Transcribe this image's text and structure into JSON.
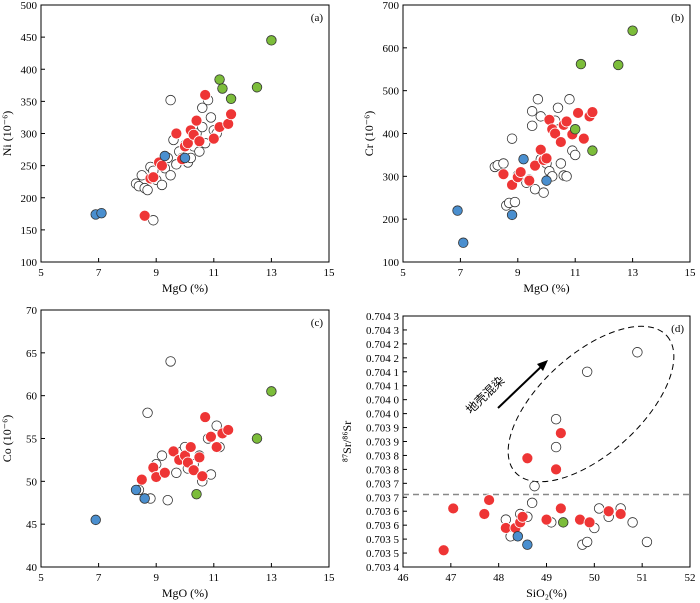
{
  "figure": {
    "description_colors": {
      "red": "#ee3535",
      "green": "#7cbd3a",
      "blue": "#4a8fcf",
      "open": "#ffffff",
      "outline": "#333333"
    }
  },
  "chart_data": [
    {
      "type": "scatter",
      "panel_label": "(a)",
      "xlabel": "MgO (%)",
      "ylabel": "Ni (10⁻⁶)",
      "xlim": [
        5,
        15
      ],
      "ylim": [
        100,
        500
      ],
      "xticks": [
        5,
        7,
        9,
        11,
        13,
        15
      ],
      "yticks": [
        100,
        150,
        200,
        250,
        300,
        350,
        400,
        450,
        500
      ],
      "grid": false,
      "series": [
        {
          "marker": "open",
          "points": [
            [
              8.3,
              222
            ],
            [
              8.4,
              218
            ],
            [
              8.5,
              235
            ],
            [
              8.6,
              215
            ],
            [
              8.7,
              212
            ],
            [
              8.8,
              248
            ],
            [
              8.9,
              242
            ],
            [
              8.9,
              165
            ],
            [
              9.0,
              228
            ],
            [
              9.2,
              220
            ],
            [
              9.3,
              246
            ],
            [
              9.4,
              262
            ],
            [
              9.5,
              235
            ],
            [
              9.5,
              352
            ],
            [
              9.6,
              290
            ],
            [
              9.7,
              252
            ],
            [
              9.8,
              272
            ],
            [
              9.9,
              262
            ],
            [
              10.0,
              282
            ],
            [
              10.1,
              255
            ],
            [
              10.2,
              262
            ],
            [
              10.3,
              280
            ],
            [
              10.4,
              300
            ],
            [
              10.5,
              272
            ],
            [
              10.6,
              310
            ],
            [
              10.6,
              340
            ],
            [
              10.7,
              285
            ],
            [
              10.8,
              352
            ],
            [
              10.9,
              325
            ],
            [
              11.0,
              305
            ],
            [
              11.1,
              300
            ]
          ]
        },
        {
          "marker": "red",
          "points": [
            [
              8.6,
              172
            ],
            [
              8.8,
              230
            ],
            [
              8.9,
              232
            ],
            [
              9.1,
              255
            ],
            [
              9.2,
              250
            ],
            [
              9.7,
              300
            ],
            [
              9.9,
              260
            ],
            [
              10.0,
              280
            ],
            [
              10.1,
              285
            ],
            [
              10.2,
              305
            ],
            [
              10.3,
              298
            ],
            [
              10.4,
              320
            ],
            [
              10.5,
              288
            ],
            [
              10.7,
              360
            ],
            [
              11.0,
              292
            ],
            [
              11.2,
              310
            ],
            [
              11.5,
              315
            ],
            [
              11.6,
              330
            ]
          ]
        },
        {
          "marker": "green",
          "points": [
            [
              11.2,
              384
            ],
            [
              11.3,
              370
            ],
            [
              11.6,
              354
            ],
            [
              12.5,
              372
            ],
            [
              13.0,
              445
            ]
          ]
        },
        {
          "marker": "blue",
          "points": [
            [
              6.9,
              174
            ],
            [
              7.1,
              176
            ],
            [
              9.3,
              265
            ],
            [
              10.0,
              262
            ]
          ]
        }
      ]
    },
    {
      "type": "scatter",
      "panel_label": "(b)",
      "xlabel": "MgO (%)",
      "ylabel": "Cr (10⁻⁶)",
      "xlim": [
        5,
        15
      ],
      "ylim": [
        100,
        700
      ],
      "xticks": [
        5,
        7,
        9,
        11,
        13,
        15
      ],
      "yticks": [
        100,
        200,
        300,
        400,
        500,
        600,
        700
      ],
      "grid": false,
      "series": [
        {
          "marker": "open",
          "points": [
            [
              8.2,
              322
            ],
            [
              8.3,
              326
            ],
            [
              8.5,
              330
            ],
            [
              8.6,
              232
            ],
            [
              8.7,
              238
            ],
            [
              8.8,
              388
            ],
            [
              8.9,
              240
            ],
            [
              9.0,
              302
            ],
            [
              9.1,
              310
            ],
            [
              9.3,
              285
            ],
            [
              9.4,
              292
            ],
            [
              9.5,
              418
            ],
            [
              9.5,
              452
            ],
            [
              9.6,
              270
            ],
            [
              9.7,
              480
            ],
            [
              9.8,
              440
            ],
            [
              9.8,
              340
            ],
            [
              9.9,
              262
            ],
            [
              10.0,
              330
            ],
            [
              10.1,
              312
            ],
            [
              10.2,
              300
            ],
            [
              10.3,
              430
            ],
            [
              10.4,
              460
            ],
            [
              10.5,
              330
            ],
            [
              10.6,
              302
            ],
            [
              10.7,
              300
            ],
            [
              10.8,
              480
            ],
            [
              10.9,
              360
            ],
            [
              11.0,
              350
            ]
          ]
        },
        {
          "marker": "red",
          "points": [
            [
              8.5,
              305
            ],
            [
              8.8,
              280
            ],
            [
              9.0,
              298
            ],
            [
              9.1,
              310
            ],
            [
              9.4,
              290
            ],
            [
              9.6,
              325
            ],
            [
              9.8,
              362
            ],
            [
              9.9,
              338
            ],
            [
              10.0,
              342
            ],
            [
              10.1,
              432
            ],
            [
              10.2,
              410
            ],
            [
              10.3,
              400
            ],
            [
              10.5,
              380
            ],
            [
              10.6,
              420
            ],
            [
              10.7,
              428
            ],
            [
              10.9,
              398
            ],
            [
              11.1,
              448
            ],
            [
              11.3,
              388
            ],
            [
              11.5,
              440
            ],
            [
              11.6,
              450
            ]
          ]
        },
        {
          "marker": "green",
          "points": [
            [
              11.0,
              410
            ],
            [
              11.2,
              562
            ],
            [
              11.6,
              360
            ],
            [
              12.5,
              560
            ],
            [
              13.0,
              640
            ]
          ]
        },
        {
          "marker": "blue",
          "points": [
            [
              6.9,
              220
            ],
            [
              7.1,
              145
            ],
            [
              8.8,
              210
            ],
            [
              9.2,
              340
            ],
            [
              10.0,
              290
            ]
          ]
        }
      ]
    },
    {
      "type": "scatter",
      "panel_label": "(c)",
      "xlabel": "MgO (%)",
      "ylabel": "Co (10⁻⁶)",
      "xlim": [
        5,
        15
      ],
      "ylim": [
        40,
        70
      ],
      "xticks": [
        5,
        7,
        9,
        11,
        13,
        15
      ],
      "yticks": [
        40,
        45,
        50,
        55,
        60,
        65,
        70
      ],
      "grid": false,
      "series": [
        {
          "marker": "open",
          "points": [
            [
              8.4,
              49
            ],
            [
              8.6,
              48
            ],
            [
              8.7,
              58
            ],
            [
              8.8,
              48
            ],
            [
              9.0,
              52
            ],
            [
              9.2,
              53
            ],
            [
              9.4,
              47.8
            ],
            [
              9.5,
              64
            ],
            [
              9.7,
              51
            ],
            [
              9.8,
              52.5
            ],
            [
              9.9,
              53.5
            ],
            [
              10.0,
              54
            ],
            [
              10.1,
              51.5
            ],
            [
              10.3,
              52
            ],
            [
              10.5,
              53
            ],
            [
              10.6,
              50
            ],
            [
              10.8,
              55
            ],
            [
              10.9,
              50.8
            ],
            [
              11.1,
              56.5
            ],
            [
              11.2,
              54
            ]
          ]
        },
        {
          "marker": "red",
          "points": [
            [
              8.5,
              50.2
            ],
            [
              8.9,
              51.6
            ],
            [
              9.0,
              50.5
            ],
            [
              9.3,
              51
            ],
            [
              9.6,
              53.5
            ],
            [
              9.8,
              52.5
            ],
            [
              10.0,
              53
            ],
            [
              10.1,
              52.2
            ],
            [
              10.2,
              54
            ],
            [
              10.3,
              51.3
            ],
            [
              10.5,
              52.8
            ],
            [
              10.6,
              50.6
            ],
            [
              10.7,
              57.5
            ],
            [
              10.9,
              55.2
            ],
            [
              11.1,
              54
            ],
            [
              11.3,
              55.6
            ],
            [
              11.5,
              56
            ]
          ]
        },
        {
          "marker": "green",
          "points": [
            [
              10.4,
              48.5
            ],
            [
              12.5,
              55
            ],
            [
              13.0,
              60.5
            ]
          ]
        },
        {
          "marker": "blue",
          "points": [
            [
              6.9,
              45.5
            ],
            [
              8.3,
              49
            ],
            [
              8.6,
              48
            ]
          ]
        }
      ]
    },
    {
      "type": "scatter",
      "panel_label": "(d)",
      "xlabel": "SiO₂(%)",
      "ylabel": "⁸⁷Sr/⁸⁶Sr",
      "xlim": [
        46,
        52
      ],
      "ylim": [
        0.7034,
        0.7043
      ],
      "xticks": [
        46,
        47,
        48,
        49,
        50,
        51,
        52
      ],
      "yticks": [
        0.7034,
        0.70345,
        0.7035,
        0.70355,
        0.7036,
        0.70365,
        0.7037,
        0.70375,
        0.7038,
        0.70385,
        0.7039,
        0.70395,
        0.704,
        0.70405,
        0.7041,
        0.70415,
        0.7042,
        0.70425,
        0.7043
      ],
      "ytick_labels": [
        "0.703 4",
        "0.703 5",
        "0.703 5",
        "0.703 6",
        "0.703 6",
        "0.703 7",
        "0.703 7",
        "0.703 8",
        "0.703 8",
        "0.703 9",
        "0.703 9",
        "0.704 0",
        "0.704 0",
        "0.704 1",
        "0.704 1",
        "0.704 2",
        "0.704 2",
        "0.704 3",
        "0.704 3"
      ],
      "grid": false,
      "reference_line": {
        "y": 0.70366,
        "style": "dashed"
      },
      "annotation": "地壳混染",
      "series": [
        {
          "marker": "open",
          "points": [
            [
              48.15,
              0.70357
            ],
            [
              48.25,
              0.70351
            ],
            [
              48.45,
              0.70359
            ],
            [
              48.6,
              0.70358
            ],
            [
              48.7,
              0.70363
            ],
            [
              48.75,
              0.70369
            ],
            [
              49.0,
              0.70357
            ],
            [
              49.1,
              0.70356
            ],
            [
              49.2,
              0.70393
            ],
            [
              49.2,
              0.70383
            ],
            [
              49.75,
              0.70348
            ],
            [
              49.85,
              0.70349
            ],
            [
              49.85,
              0.7041
            ],
            [
              50.0,
              0.70354
            ],
            [
              50.1,
              0.70361
            ],
            [
              50.3,
              0.70358
            ],
            [
              50.55,
              0.70361
            ],
            [
              50.8,
              0.70356
            ],
            [
              50.9,
              0.70417
            ],
            [
              51.1,
              0.70349
            ]
          ]
        },
        {
          "marker": "red",
          "points": [
            [
              46.85,
              0.70346
            ],
            [
              47.05,
              0.70361
            ],
            [
              47.7,
              0.70359
            ],
            [
              47.8,
              0.70364
            ],
            [
              48.15,
              0.70354
            ],
            [
              48.35,
              0.70354
            ],
            [
              48.45,
              0.70356
            ],
            [
              48.5,
              0.70358
            ],
            [
              48.6,
              0.70379
            ],
            [
              49.0,
              0.70357
            ],
            [
              49.2,
              0.70375
            ],
            [
              49.3,
              0.70388
            ],
            [
              49.3,
              0.70361
            ],
            [
              49.7,
              0.70357
            ],
            [
              49.9,
              0.70356
            ],
            [
              50.3,
              0.7036
            ],
            [
              50.55,
              0.70359
            ]
          ]
        },
        {
          "marker": "green",
          "points": [
            [
              49.35,
              0.70356
            ]
          ]
        },
        {
          "marker": "blue",
          "points": [
            [
              48.4,
              0.70351
            ],
            [
              48.6,
              0.70348
            ]
          ]
        }
      ]
    }
  ]
}
